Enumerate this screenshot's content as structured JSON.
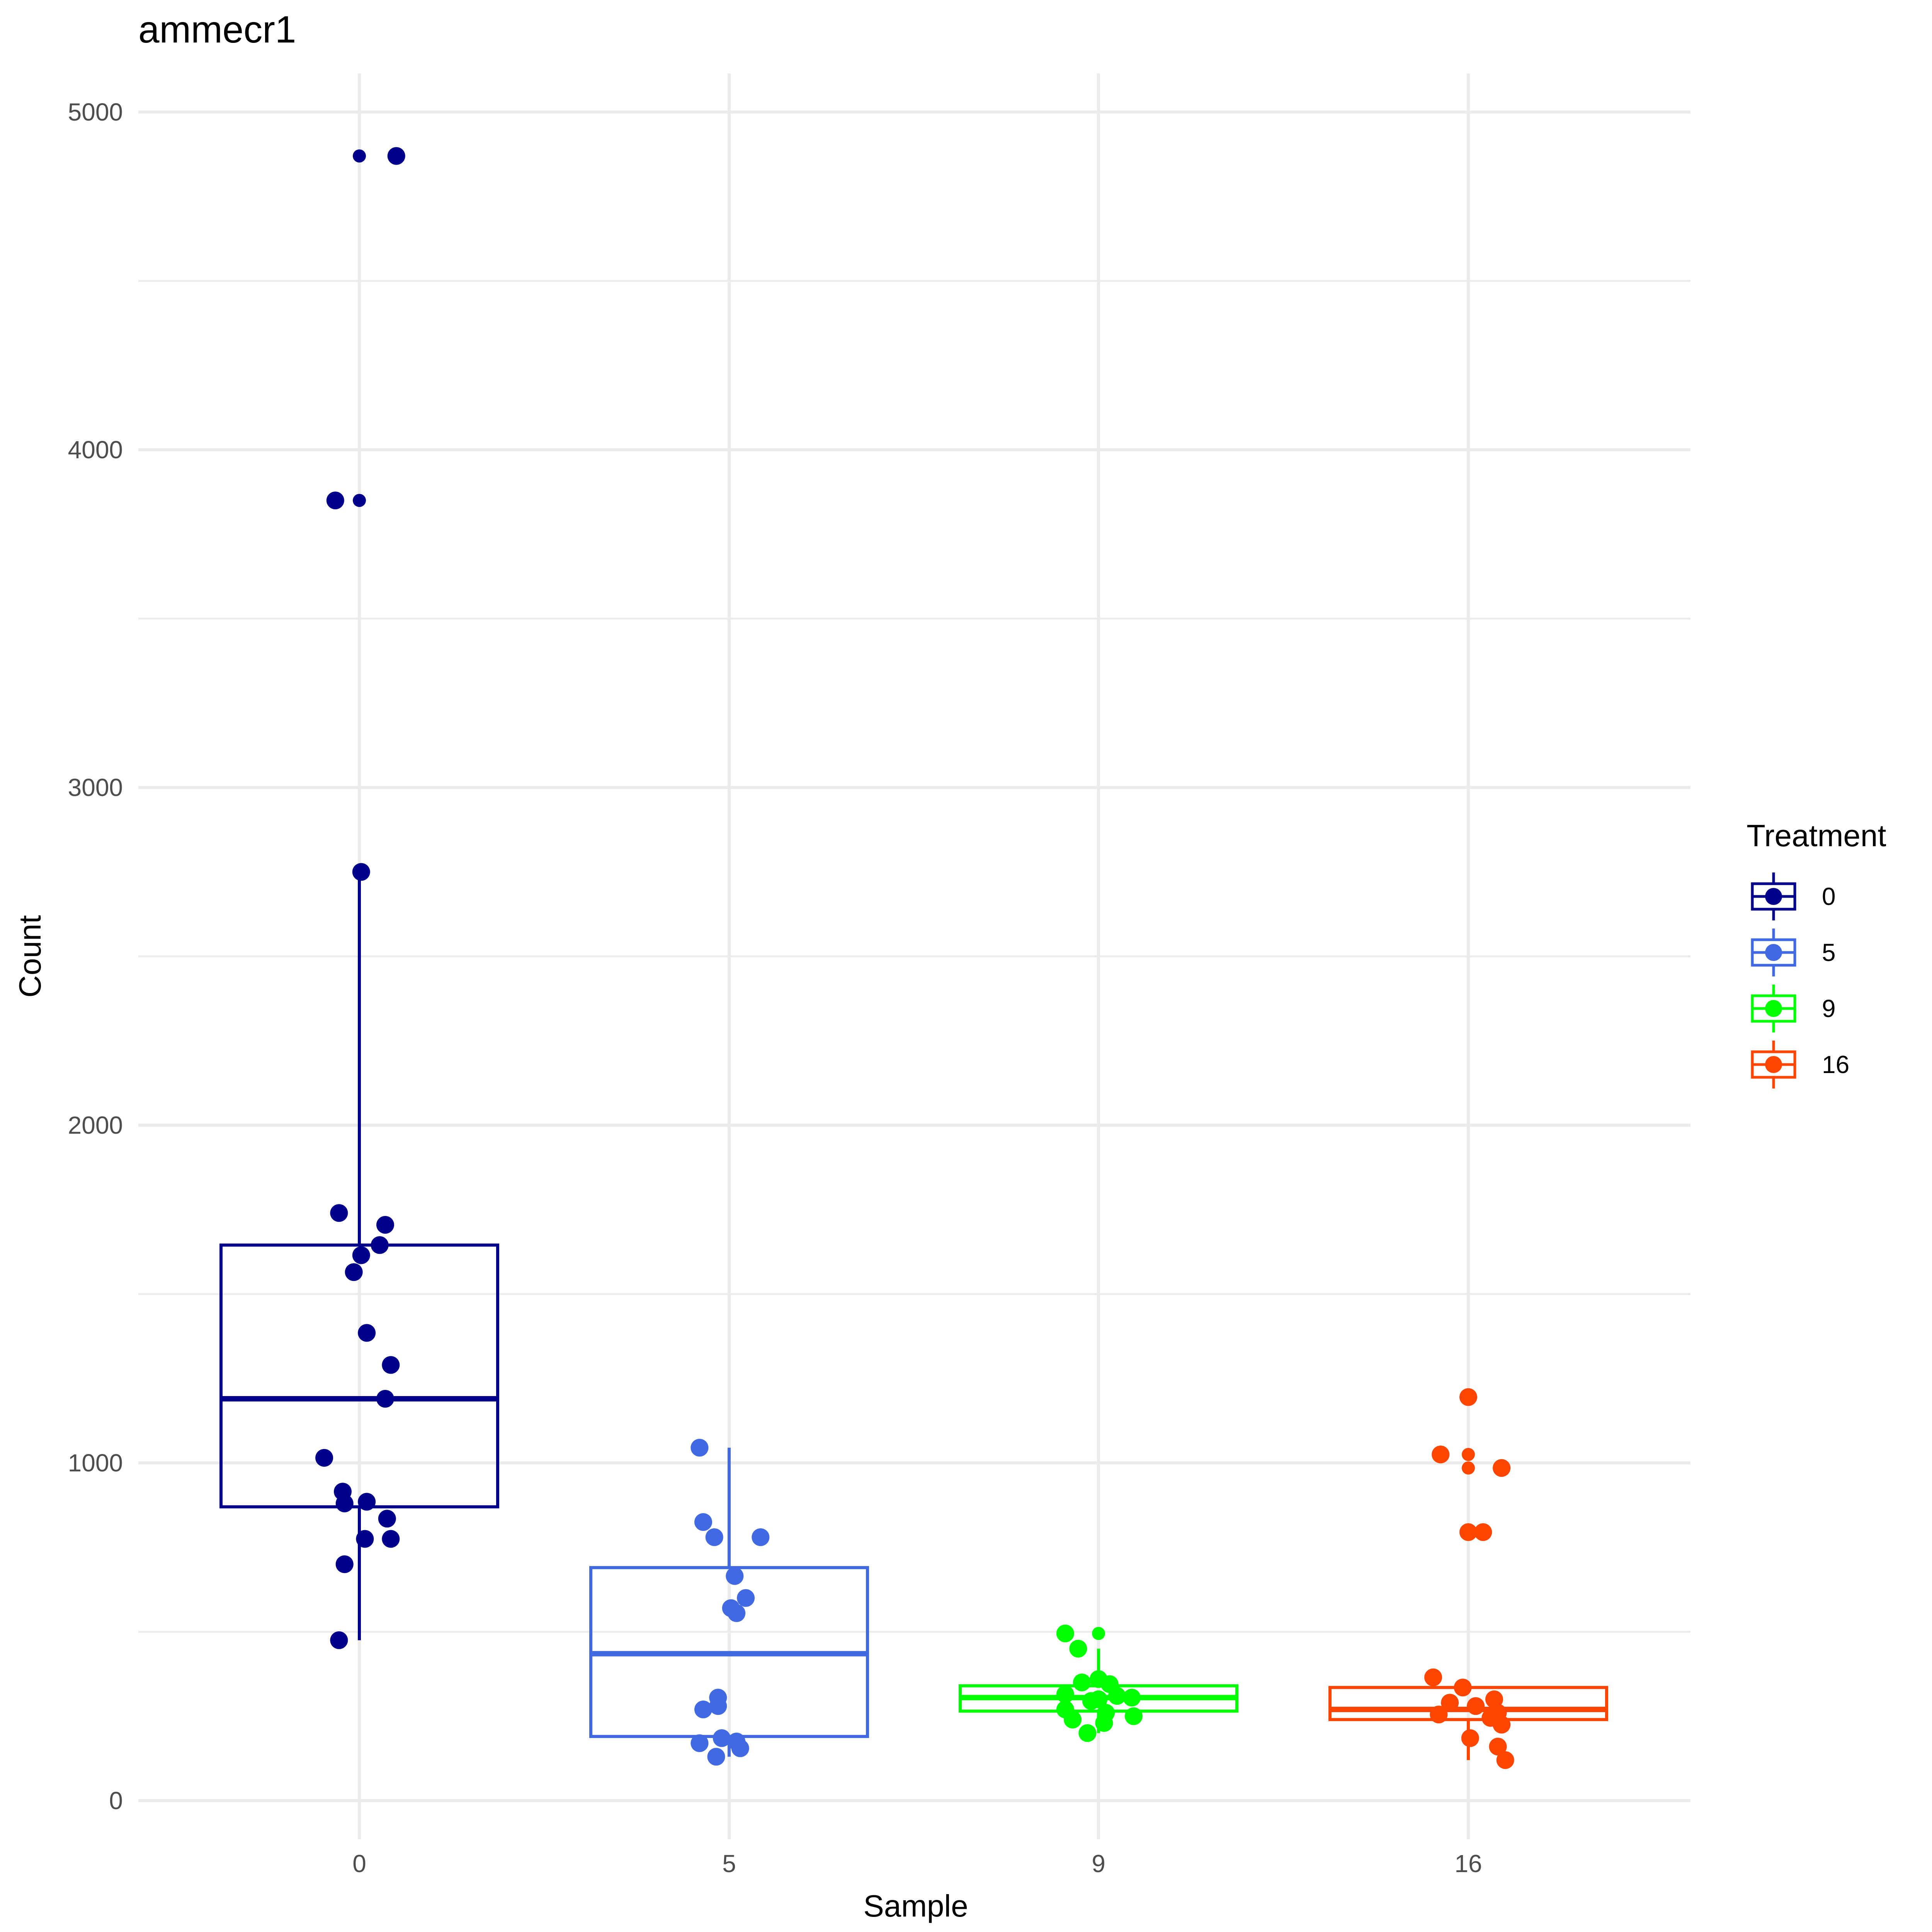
{
  "chart_data": {
    "type": "box",
    "title": "ammecr1",
    "xlabel": "Sample",
    "ylabel": "Count",
    "categories": [
      "0",
      "5",
      "9",
      "16"
    ],
    "ylim": [
      -100,
      5120
    ],
    "yticks": [
      0,
      1000,
      2000,
      3000,
      4000,
      5000
    ],
    "ytick_labels": [
      "0",
      "1000",
      "2000",
      "3000",
      "4000",
      "5000"
    ],
    "grid": true,
    "legend": {
      "title": "Treatment",
      "position": "right",
      "entries": [
        "0",
        "5",
        "9",
        "16"
      ]
    },
    "series": [
      {
        "name": "0",
        "color": "#00008B",
        "box": {
          "q1": 870,
          "median": 1190,
          "q3": 1645,
          "whisker_low": 475,
          "whisker_high": 2750
        },
        "points": [
          {
            "x_offset": 0.0,
            "y": 4870,
            "size": "small"
          },
          {
            "x_offset": 0.1,
            "y": 4870,
            "size": "large"
          },
          {
            "x_offset": -0.065,
            "y": 3850,
            "size": "large"
          },
          {
            "x_offset": 0.0,
            "y": 3850,
            "size": "small"
          },
          {
            "x_offset": 0.005,
            "y": 2750,
            "size": "large"
          },
          {
            "x_offset": -0.055,
            "y": 1740,
            "size": "large"
          },
          {
            "x_offset": 0.07,
            "y": 1705,
            "size": "large"
          },
          {
            "x_offset": 0.055,
            "y": 1645,
            "size": "large"
          },
          {
            "x_offset": 0.005,
            "y": 1615,
            "size": "large"
          },
          {
            "x_offset": -0.015,
            "y": 1565,
            "size": "large"
          },
          {
            "x_offset": 0.02,
            "y": 1385,
            "size": "large"
          },
          {
            "x_offset": 0.085,
            "y": 1290,
            "size": "large"
          },
          {
            "x_offset": 0.07,
            "y": 1190,
            "size": "large"
          },
          {
            "x_offset": -0.095,
            "y": 1015,
            "size": "large"
          },
          {
            "x_offset": -0.045,
            "y": 915,
            "size": "large"
          },
          {
            "x_offset": 0.02,
            "y": 885,
            "size": "large"
          },
          {
            "x_offset": -0.04,
            "y": 880,
            "size": "large"
          },
          {
            "x_offset": 0.075,
            "y": 835,
            "size": "large"
          },
          {
            "x_offset": 0.015,
            "y": 775,
            "size": "large"
          },
          {
            "x_offset": 0.085,
            "y": 775,
            "size": "large"
          },
          {
            "x_offset": -0.04,
            "y": 700,
            "size": "large"
          },
          {
            "x_offset": -0.055,
            "y": 475,
            "size": "large"
          }
        ]
      },
      {
        "name": "5",
        "color": "#4169E1",
        "box": {
          "q1": 190,
          "median": 435,
          "q3": 690,
          "whisker_low": 130,
          "whisker_high": 1045
        },
        "points": [
          {
            "x_offset": -0.08,
            "y": 1045,
            "size": "large"
          },
          {
            "x_offset": -0.07,
            "y": 825,
            "size": "large"
          },
          {
            "x_offset": -0.04,
            "y": 780,
            "size": "large"
          },
          {
            "x_offset": 0.085,
            "y": 780,
            "size": "large"
          },
          {
            "x_offset": 0.015,
            "y": 665,
            "size": "large"
          },
          {
            "x_offset": 0.045,
            "y": 600,
            "size": "large"
          },
          {
            "x_offset": 0.005,
            "y": 570,
            "size": "large"
          },
          {
            "x_offset": 0.02,
            "y": 555,
            "size": "large"
          },
          {
            "x_offset": -0.03,
            "y": 305,
            "size": "large"
          },
          {
            "x_offset": -0.03,
            "y": 280,
            "size": "large"
          },
          {
            "x_offset": -0.07,
            "y": 270,
            "size": "large"
          },
          {
            "x_offset": -0.02,
            "y": 185,
            "size": "large"
          },
          {
            "x_offset": -0.08,
            "y": 170,
            "size": "large"
          },
          {
            "x_offset": 0.02,
            "y": 175,
            "size": "large"
          },
          {
            "x_offset": 0.03,
            "y": 155,
            "size": "large"
          },
          {
            "x_offset": -0.035,
            "y": 130,
            "size": "large"
          }
        ]
      },
      {
        "name": "9",
        "color": "#00FF00",
        "box": {
          "q1": 265,
          "median": 305,
          "q3": 340,
          "whisker_low": 200,
          "whisker_high": 450
        },
        "points": [
          {
            "x_offset": -0.09,
            "y": 495,
            "size": "large"
          },
          {
            "x_offset": 0.0,
            "y": 495,
            "size": "small"
          },
          {
            "x_offset": -0.055,
            "y": 450,
            "size": "large"
          },
          {
            "x_offset": 0.0,
            "y": 360,
            "size": "large"
          },
          {
            "x_offset": -0.045,
            "y": 350,
            "size": "large"
          },
          {
            "x_offset": 0.03,
            "y": 345,
            "size": "large"
          },
          {
            "x_offset": -0.09,
            "y": 315,
            "size": "large"
          },
          {
            "x_offset": 0.0,
            "y": 300,
            "size": "large"
          },
          {
            "x_offset": -0.02,
            "y": 295,
            "size": "large"
          },
          {
            "x_offset": 0.09,
            "y": 305,
            "size": "large"
          },
          {
            "x_offset": 0.05,
            "y": 310,
            "size": "large"
          },
          {
            "x_offset": -0.09,
            "y": 270,
            "size": "large"
          },
          {
            "x_offset": 0.02,
            "y": 260,
            "size": "large"
          },
          {
            "x_offset": 0.095,
            "y": 250,
            "size": "large"
          },
          {
            "x_offset": -0.07,
            "y": 240,
            "size": "large"
          },
          {
            "x_offset": 0.015,
            "y": 230,
            "size": "large"
          },
          {
            "x_offset": -0.03,
            "y": 200,
            "size": "large"
          }
        ]
      },
      {
        "name": "16",
        "color": "#FF4500",
        "box": {
          "q1": 240,
          "median": 270,
          "q3": 335,
          "whisker_low": 120,
          "whisker_high": 350
        },
        "points": [
          {
            "x_offset": 0.0,
            "y": 1195,
            "size": "large"
          },
          {
            "x_offset": -0.075,
            "y": 1025,
            "size": "large"
          },
          {
            "x_offset": 0.0,
            "y": 1025,
            "size": "small"
          },
          {
            "x_offset": 0.0,
            "y": 985,
            "size": "small"
          },
          {
            "x_offset": 0.09,
            "y": 985,
            "size": "large"
          },
          {
            "x_offset": 0.0,
            "y": 795,
            "size": "large"
          },
          {
            "x_offset": 0.04,
            "y": 795,
            "size": "large"
          },
          {
            "x_offset": -0.095,
            "y": 365,
            "size": "large"
          },
          {
            "x_offset": -0.015,
            "y": 335,
            "size": "large"
          },
          {
            "x_offset": 0.07,
            "y": 300,
            "size": "large"
          },
          {
            "x_offset": -0.05,
            "y": 290,
            "size": "large"
          },
          {
            "x_offset": 0.02,
            "y": 280,
            "size": "large"
          },
          {
            "x_offset": 0.08,
            "y": 260,
            "size": "large"
          },
          {
            "x_offset": -0.08,
            "y": 255,
            "size": "large"
          },
          {
            "x_offset": 0.06,
            "y": 245,
            "size": "large"
          },
          {
            "x_offset": 0.09,
            "y": 225,
            "size": "large"
          },
          {
            "x_offset": 0.005,
            "y": 185,
            "size": "large"
          },
          {
            "x_offset": 0.08,
            "y": 160,
            "size": "large"
          },
          {
            "x_offset": 0.1,
            "y": 120,
            "size": "large"
          }
        ]
      }
    ]
  }
}
